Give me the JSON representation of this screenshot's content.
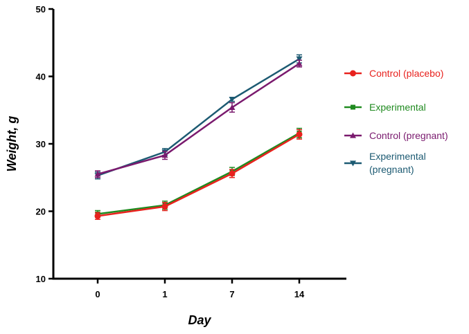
{
  "chart_data": {
    "type": "line",
    "title": "",
    "xlabel": "Day",
    "ylabel": "Weight, g",
    "categories": [
      "0",
      "1",
      "7",
      "14"
    ],
    "ylim": [
      10,
      50
    ],
    "yticks": [
      10,
      20,
      30,
      40,
      50
    ],
    "grid": false,
    "legend_position": "right",
    "series": [
      {
        "name": "Control (placebo)",
        "legend_lines": [
          "Control (placebo)"
        ],
        "color": "#e8221e",
        "marker": "circle",
        "values": [
          19.3,
          20.7,
          25.6,
          31.4
        ],
        "errors": [
          0.5,
          0.6,
          0.6,
          0.7
        ]
      },
      {
        "name": "Experimental",
        "legend_lines": [
          "Experimental"
        ],
        "color": "#1f8a1f",
        "marker": "square",
        "values": [
          19.6,
          20.9,
          25.9,
          31.6
        ],
        "errors": [
          0.5,
          0.6,
          0.6,
          0.7
        ]
      },
      {
        "name": "Control (pregnant)",
        "legend_lines": [
          "Control (pregnant)"
        ],
        "color": "#7a1a6e",
        "marker": "triangle-up",
        "values": [
          25.5,
          28.3,
          35.4,
          41.9
        ],
        "errors": [
          0.5,
          0.6,
          0.7,
          0.5
        ]
      },
      {
        "name": "Experimental (pregnant)",
        "legend_lines": [
          "Experimental",
          "(pregnant)"
        ],
        "color": "#1c5a72",
        "marker": "triangle-down",
        "values": [
          25.3,
          28.8,
          36.6,
          42.6
        ],
        "errors": [
          0.5,
          0.5,
          0.3,
          0.6
        ]
      }
    ]
  }
}
